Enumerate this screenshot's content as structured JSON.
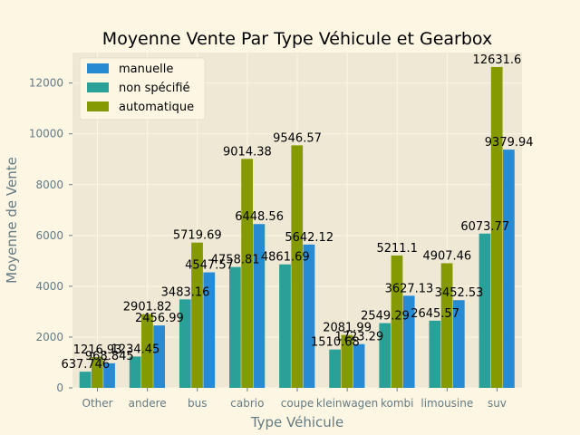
{
  "chart_data": {
    "type": "bar",
    "title": "Moyenne Vente Par Type Véhicule et Gearbox",
    "xlabel": "Type Véhicule",
    "ylabel": "Moyenne de Vente",
    "ylim": [
      0,
      13200
    ],
    "yticks": [
      0,
      2000,
      4000,
      6000,
      8000,
      10000,
      12000
    ],
    "grid": true,
    "legend_position": "top-left",
    "categories": [
      "Other",
      "andere",
      "bus",
      "cabrio",
      "coupe",
      "kleinwagen",
      "kombi",
      "limousine",
      "suv"
    ],
    "series": [
      {
        "name": "non spécifié",
        "color": "#2aa198",
        "values": [
          637.746,
          1234.45,
          3483.16,
          4758.81,
          4861.69,
          1510.68,
          2549.29,
          2645.57,
          6073.77
        ],
        "labels": [
          "637.746",
          "1234.45",
          "3483.16",
          "4758.81",
          "4861.69",
          "1510.68",
          "2549.29",
          "2645.57",
          "6073.77"
        ]
      },
      {
        "name": "automatique",
        "color": "#859900",
        "values": [
          1216.93,
          2901.82,
          5719.69,
          9014.38,
          9546.57,
          2081.99,
          5211.1,
          4907.46,
          12631.6
        ],
        "labels": [
          "1216.93",
          "2901.82",
          "5719.69",
          "9014.38",
          "9546.57",
          "2081.99",
          "5211.1",
          "4907.46",
          "12631.6"
        ]
      },
      {
        "name": "manuelle",
        "color": "#268bd2",
        "values": [
          968.845,
          2456.99,
          4547.57,
          6448.56,
          5642.12,
          1723.29,
          3627.13,
          3452.53,
          9379.94
        ],
        "labels": [
          "968.845",
          "2456.99",
          "4547.57",
          "6448.56",
          "5642.12",
          "1723.29",
          "3627.13",
          "3452.53",
          "9379.94"
        ]
      }
    ],
    "legend_order": [
      "manuelle",
      "non spécifié",
      "automatique"
    ]
  },
  "style": {
    "page_background": "#fdf6e3",
    "plot_background": "#eee8d5",
    "grid_color": "#fdf6e3",
    "axis_text_color": "#657b83",
    "title_color": "#000000",
    "label_color": "#000000"
  }
}
